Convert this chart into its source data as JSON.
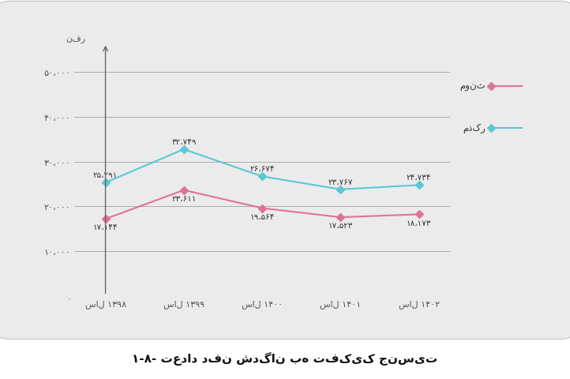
{
  "years": [
    "سال ۱۳۹۸",
    "سال ۱۳۹۹",
    "سال ۱۴۰۰",
    "سال ۱۴۰۱",
    "سال ۱۴۰۲"
  ],
  "male_values": [
    25291,
    32749,
    26674,
    23767,
    24734
  ],
  "female_values": [
    17144,
    23611,
    19564,
    17523,
    18173
  ],
  "male_labels": [
    "۲۵،۲۹۱",
    "۳۲،۷۴۹",
    "۲۶،۶۷۴",
    "۲۳،۷۶۷",
    "۲۴،۷۳۴"
  ],
  "female_labels": [
    "۱۷،۱۴۴",
    "۲۳،۶۱۱",
    "۱۹،۵۶۴",
    "۱۷،۵۲۳",
    "۱۸،۱۷۳"
  ],
  "male_color": "#5BC8D5",
  "female_color": "#E0729A",
  "male_legend": "مذکر",
  "female_legend": "مونث",
  "ylabel": "نفر",
  "yticks": [
    0,
    10000,
    20000,
    30000,
    40000,
    50000
  ],
  "ytick_labels": [
    ".",
    "۱۰،۰۰۰",
    "۲۰،۰۰۰",
    "۳۰،۰۰۰",
    "۴۰،۰۰۰",
    "۵۰،۰۰۰"
  ],
  "title": "۱-۸- تعداد دفن شدگان به تفکیک جنسیت",
  "panel_bg": "#EBEBEB",
  "plot_bg": "#E8E8E8",
  "white_bg": "#FFFFFF"
}
